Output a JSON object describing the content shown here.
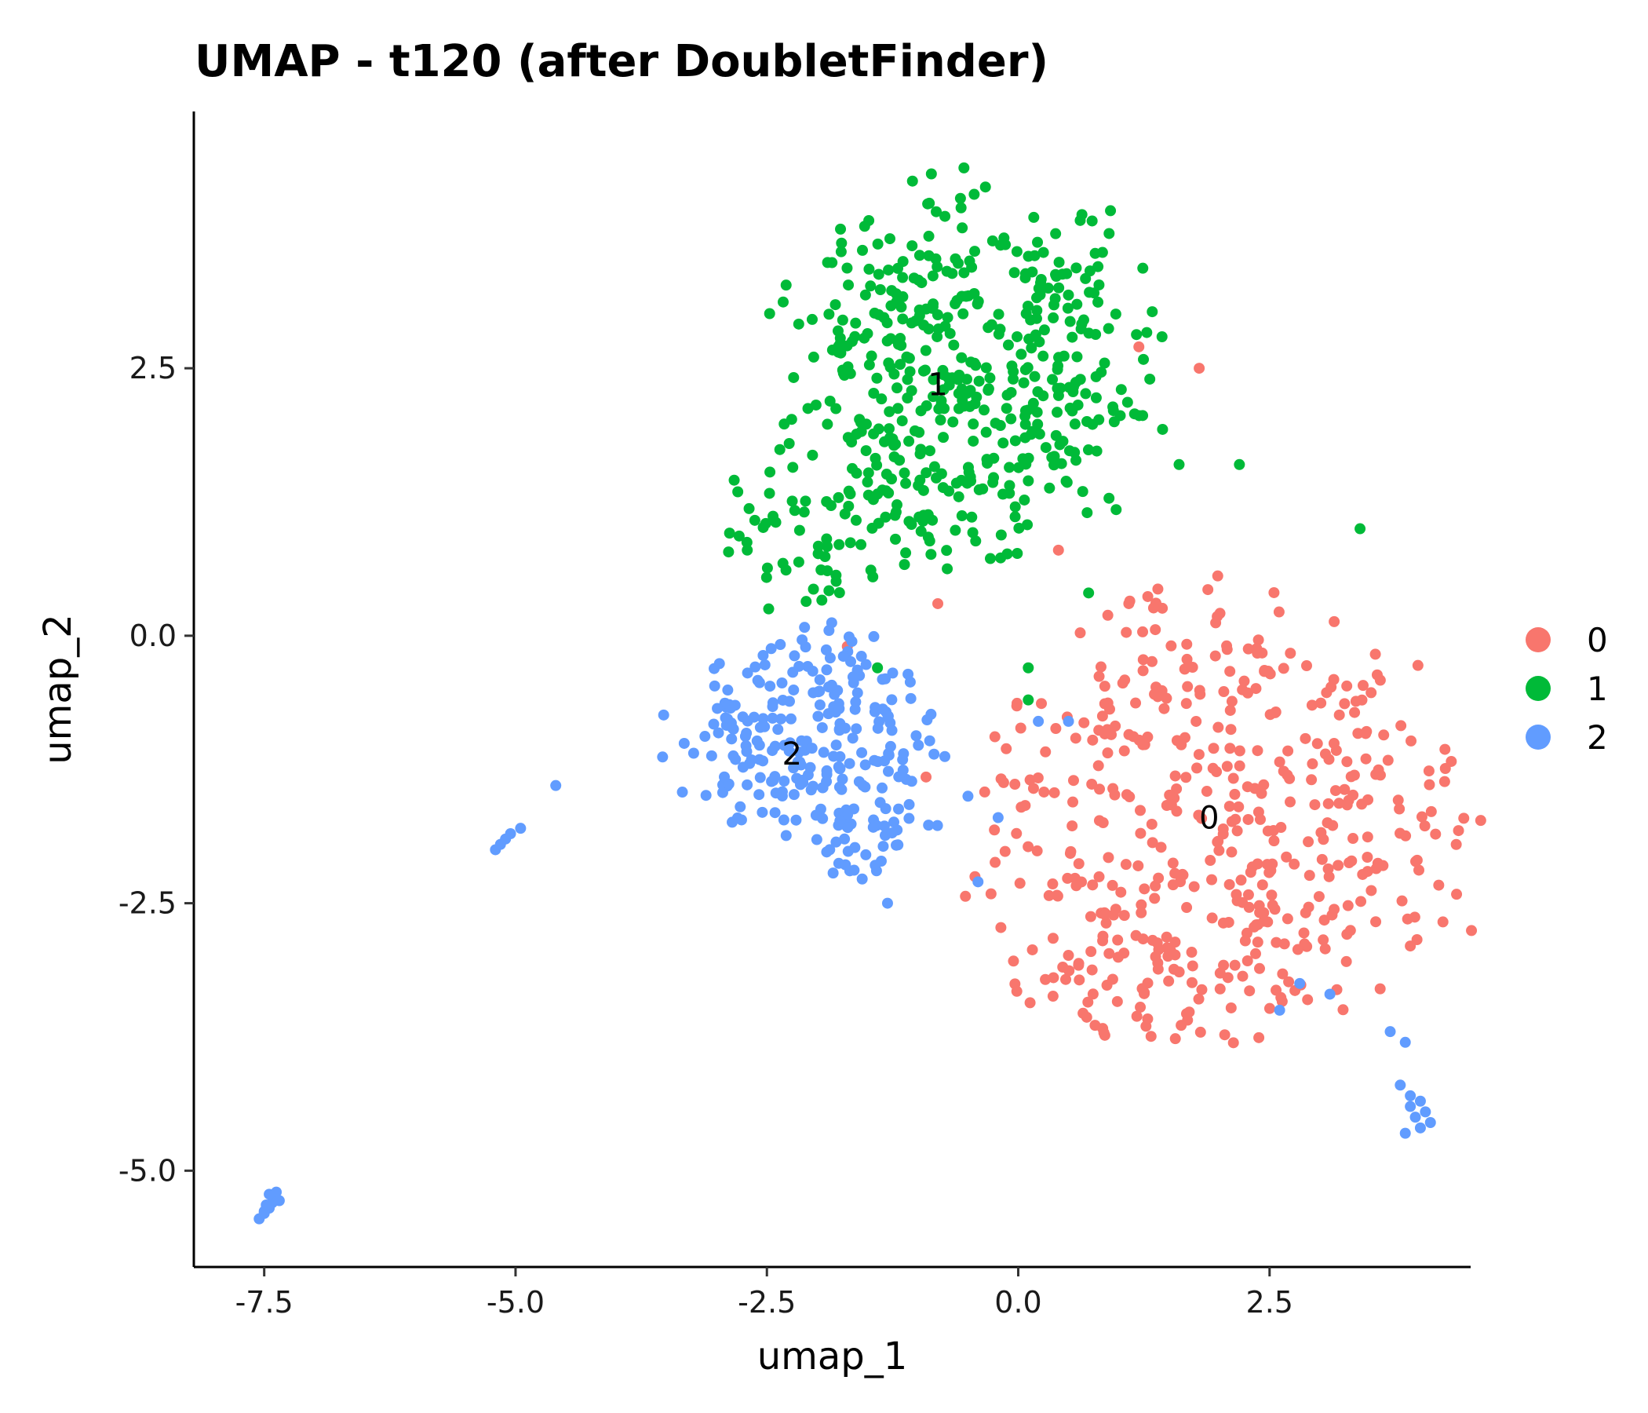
{
  "chart_data": {
    "type": "scatter",
    "title": "UMAP - t120 (after DoubletFinder)",
    "xlabel": "umap_1",
    "ylabel": "umap_2",
    "xlim": [
      -8.2,
      4.5
    ],
    "ylim": [
      -5.9,
      4.9
    ],
    "xticks": [
      -7.5,
      -5.0,
      -2.5,
      0.0,
      2.5
    ],
    "yticks": [
      -5.0,
      -2.5,
      0.0,
      2.5
    ],
    "xtick_labels": [
      "-7.5",
      "-5.0",
      "-2.5",
      "0.0",
      "2.5"
    ],
    "ytick_labels": [
      "-5.0",
      "-2.5",
      "0.0",
      "2.5"
    ],
    "legend": {
      "position": "right"
    },
    "series": [
      {
        "name": "0",
        "color": "#F8766D",
        "label": "0",
        "label_pos": [
          1.9,
          -1.7
        ],
        "regions": [
          {
            "shape": "ellipse",
            "cx": 2.0,
            "cy": -1.6,
            "rx": 3.0,
            "ry": 2.4,
            "n": 430
          },
          {
            "shape": "ellipse",
            "cx": 1.3,
            "cy": -3.3,
            "rx": 1.9,
            "ry": 0.6,
            "n": 60
          }
        ],
        "points": [
          [
            -0.8,
            0.3
          ],
          [
            0.4,
            0.8
          ],
          [
            1.1,
            0.3
          ],
          [
            -1.7,
            -0.1
          ],
          [
            3.9,
            -2.9
          ],
          [
            3.6,
            -3.3
          ],
          [
            1.2,
            2.7
          ],
          [
            1.8,
            2.5
          ]
        ]
      },
      {
        "name": "1",
        "color": "#00BA38",
        "label": "1",
        "label_pos": [
          -0.8,
          2.35
        ],
        "regions": [
          {
            "shape": "ellipse",
            "cx": -0.5,
            "cy": 2.5,
            "rx": 2.2,
            "ry": 2.0,
            "n": 470
          },
          {
            "shape": "ellipse",
            "cx": -2.0,
            "cy": 1.0,
            "rx": 1.2,
            "ry": 0.9,
            "n": 60
          }
        ],
        "points": [
          [
            1.6,
            1.6
          ],
          [
            2.2,
            1.6
          ],
          [
            3.4,
            1.0
          ],
          [
            0.1,
            -0.3
          ],
          [
            0.1,
            -0.6
          ],
          [
            -1.4,
            -0.3
          ],
          [
            0.7,
            0.4
          ]
        ]
      },
      {
        "name": "2",
        "color": "#619CFF",
        "label": "2",
        "label_pos": [
          -2.25,
          -1.1
        ],
        "regions": [
          {
            "shape": "ellipse",
            "cx": -2.1,
            "cy": -0.95,
            "rx": 1.55,
            "ry": 1.15,
            "n": 230
          },
          {
            "shape": "ellipse",
            "cx": -1.5,
            "cy": -1.9,
            "rx": 0.9,
            "ry": 0.5,
            "n": 40
          }
        ],
        "points": [
          [
            -4.6,
            -1.4
          ],
          [
            -5.2,
            -2.0
          ],
          [
            -5.15,
            -1.95
          ],
          [
            -5.1,
            -1.9
          ],
          [
            -5.05,
            -1.85
          ],
          [
            -4.95,
            -1.8
          ],
          [
            -7.55,
            -5.45
          ],
          [
            -7.5,
            -5.4
          ],
          [
            -7.45,
            -5.35
          ],
          [
            -7.42,
            -5.3
          ],
          [
            -7.4,
            -5.25
          ],
          [
            -7.38,
            -5.2
          ],
          [
            -7.45,
            -5.22
          ],
          [
            -7.5,
            -5.38
          ],
          [
            -7.35,
            -5.28
          ],
          [
            -7.48,
            -5.32
          ],
          [
            3.8,
            -4.2
          ],
          [
            3.9,
            -4.4
          ],
          [
            3.95,
            -4.5
          ],
          [
            4.0,
            -4.6
          ],
          [
            3.85,
            -4.65
          ],
          [
            4.05,
            -4.45
          ],
          [
            4.1,
            -4.55
          ],
          [
            3.9,
            -4.3
          ],
          [
            4.0,
            -4.35
          ],
          [
            3.7,
            -3.7
          ],
          [
            3.85,
            -3.8
          ],
          [
            0.2,
            -0.8
          ],
          [
            -0.2,
            -1.7
          ],
          [
            -0.5,
            -1.5
          ],
          [
            0.5,
            -0.8
          ],
          [
            -0.4,
            -2.3
          ],
          [
            -1.3,
            -2.5
          ],
          [
            2.6,
            -3.5
          ],
          [
            3.1,
            -3.35
          ],
          [
            2.8,
            -3.25
          ]
        ]
      }
    ]
  }
}
